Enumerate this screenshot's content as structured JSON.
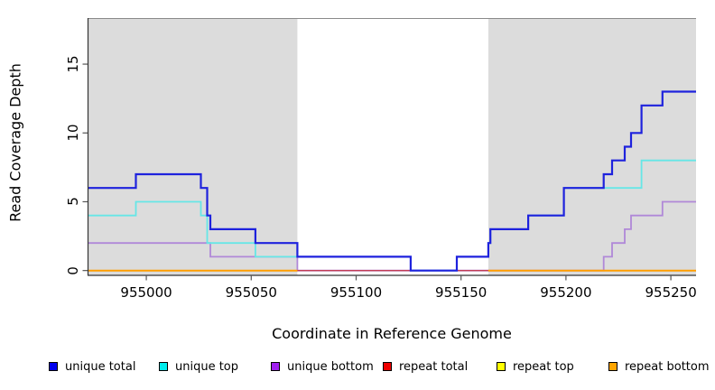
{
  "chart_data": {
    "type": "line",
    "subtype": "step-coverage",
    "xlabel": "Coordinate in Reference Genome",
    "ylabel": "Read Coverage Depth",
    "xlim": [
      954972,
      955262
    ],
    "ylim": [
      -0.35,
      18.35
    ],
    "x_ticks": [
      955000,
      955050,
      955100,
      955150,
      955200,
      955250
    ],
    "y_ticks": [
      0,
      5,
      10,
      15
    ],
    "grid": false,
    "legend_position": "bottom",
    "plot_background": "#ffffff",
    "shaded_regions": [
      {
        "x0": 954972,
        "x1": 955072,
        "color": "#dcdcdc"
      },
      {
        "x0": 955163,
        "x1": 955262,
        "color": "#dcdcdc"
      }
    ],
    "series": [
      {
        "name": "unique total",
        "color": "#1e22dd",
        "legend_color": "#0000ee",
        "width": 2.2,
        "z": 5,
        "segments": [
          [
            [
              954972,
              6
            ],
            [
              954995,
              7
            ],
            [
              955026,
              6
            ],
            [
              955029,
              4
            ],
            [
              955030.5,
              3
            ],
            [
              955052,
              2
            ],
            [
              955072,
              1
            ],
            [
              955126,
              0
            ],
            [
              955148,
              1
            ],
            [
              955163,
              2
            ],
            [
              955164,
              3
            ],
            [
              955182,
              4
            ],
            [
              955199,
              6
            ],
            [
              955218,
              7
            ],
            [
              955222,
              8
            ],
            [
              955228,
              9
            ],
            [
              955231,
              10
            ],
            [
              955236,
              12
            ],
            [
              955246,
              13
            ],
            [
              955262,
              13
            ]
          ]
        ]
      },
      {
        "name": "unique top",
        "color": "#66e6e6",
        "legend_color": "#00eeee",
        "width": 1.8,
        "z": 4,
        "segments": [
          [
            [
              954972,
              4
            ],
            [
              954995,
              5
            ],
            [
              955026,
              4
            ],
            [
              955029,
              2
            ],
            [
              955052,
              1
            ],
            [
              955126,
              0
            ],
            [
              955148,
              1
            ],
            [
              955163,
              2
            ],
            [
              955164,
              3
            ],
            [
              955182,
              4
            ],
            [
              955199,
              6
            ],
            [
              955236,
              8
            ],
            [
              955262,
              8
            ]
          ]
        ]
      },
      {
        "name": "unique bottom",
        "color": "#b088d8",
        "legend_color": "#a020f0",
        "width": 1.8,
        "z": 2,
        "segments": [
          [
            [
              954972,
              2
            ],
            [
              955030.5,
              1
            ],
            [
              955072,
              0
            ],
            [
              955218,
              1
            ],
            [
              955222,
              2
            ],
            [
              955228,
              3
            ],
            [
              955231,
              4
            ],
            [
              955246,
              5
            ],
            [
              955262,
              5
            ]
          ]
        ]
      },
      {
        "name": "repeat total",
        "color": "#c23b55",
        "legend_color": "#ee0000",
        "width": 1.4,
        "z": 3,
        "segments": [
          [
            [
              954972,
              0
            ],
            [
              955262,
              0
            ]
          ]
        ]
      },
      {
        "name": "repeat top",
        "color": "#ffff00",
        "legend_color": "#ffff00",
        "width": 1.4,
        "z": 1,
        "segments": [
          [
            [
              954972,
              0
            ],
            [
              955262,
              0
            ]
          ]
        ]
      },
      {
        "name": "repeat bottom",
        "color": "#ff9e00",
        "legend_color": "#ffa500",
        "width": 2,
        "z": 6,
        "segments": [
          [
            [
              954972,
              0
            ],
            [
              955072,
              0
            ]
          ],
          [
            [
              955163,
              0
            ],
            [
              955262,
              0
            ]
          ]
        ]
      }
    ]
  }
}
